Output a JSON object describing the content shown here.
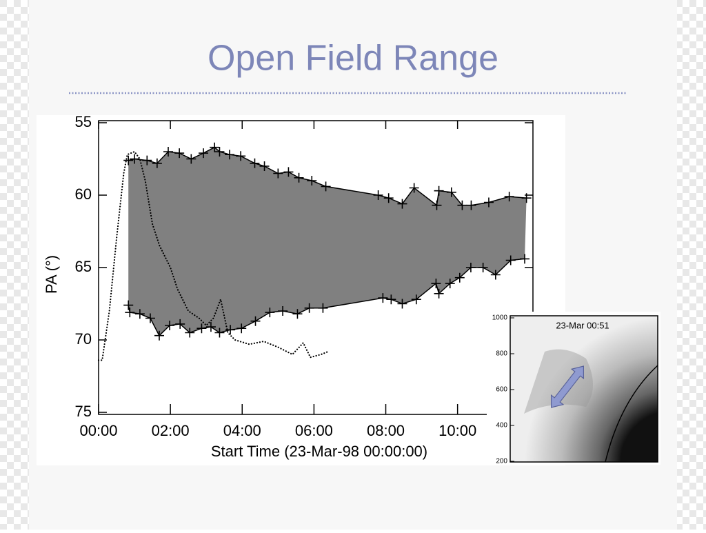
{
  "slide": {
    "title": "Open Field Range"
  },
  "chart_data": {
    "type": "line",
    "xlabel": "Start Time (23-Mar-98 00:00:00)",
    "ylabel": "PA (°)",
    "xlim": [
      0,
      12.1
    ],
    "xticks": [
      {
        "value": 0,
        "label": "00:00"
      },
      {
        "value": 2,
        "label": "02:00"
      },
      {
        "value": 4,
        "label": "04:00"
      },
      {
        "value": 6,
        "label": "06:00"
      },
      {
        "value": 8,
        "label": "08:00"
      },
      {
        "value": 10,
        "label": "10:00"
      }
    ],
    "ylim": [
      55,
      75
    ],
    "yticks": [
      55,
      60,
      65,
      70,
      75
    ],
    "y_inverted": true,
    "fill_between": [
      0,
      1
    ],
    "fill_color": "#808080",
    "series": [
      {
        "color": "#000000",
        "marker": "plus",
        "style": "solid",
        "x": [
          0.83,
          1.0,
          1.35,
          1.63,
          1.94,
          2.25,
          2.58,
          2.92,
          3.23,
          3.37,
          3.65,
          3.96,
          4.35,
          4.62,
          5.0,
          5.29,
          5.58,
          5.94,
          6.33,
          7.79,
          8.08,
          8.46,
          8.79,
          9.42,
          9.48,
          9.83,
          10.13,
          10.38,
          10.87,
          11.44,
          11.92
        ],
        "values": [
          57.6,
          57.5,
          57.6,
          57.8,
          57.0,
          57.1,
          57.5,
          57.1,
          56.7,
          57.0,
          57.2,
          57.3,
          57.8,
          58.0,
          58.5,
          58.4,
          58.8,
          59.0,
          59.4,
          60.0,
          60.2,
          60.6,
          59.5,
          60.7,
          59.7,
          59.8,
          60.7,
          60.7,
          60.5,
          60.1,
          60.2
        ]
      },
      {
        "color": "#000000",
        "marker": "plus",
        "style": "solid",
        "x": [
          0.83,
          0.87,
          1.15,
          1.44,
          1.69,
          1.98,
          2.27,
          2.54,
          2.87,
          3.13,
          3.37,
          3.67,
          3.98,
          4.37,
          4.77,
          5.13,
          5.54,
          5.87,
          6.25,
          7.92,
          8.15,
          8.46,
          8.85,
          9.4,
          9.48,
          9.79,
          10.06,
          10.37,
          10.71,
          11.06,
          11.48,
          11.87
        ],
        "values": [
          67.6,
          68.1,
          68.2,
          68.5,
          69.7,
          69.0,
          68.9,
          69.5,
          69.2,
          69.1,
          69.5,
          69.3,
          69.2,
          68.7,
          68.1,
          68.0,
          68.2,
          67.8,
          67.8,
          67.1,
          67.2,
          67.5,
          67.2,
          66.1,
          66.8,
          66.1,
          65.7,
          65.0,
          65.0,
          65.5,
          64.5,
          64.4
        ]
      },
      {
        "color": "#000000",
        "marker": "none",
        "style": "dotted",
        "x": [
          0,
          0.1,
          0.3,
          0.5,
          0.7,
          0.8,
          1.0,
          1.15,
          1.3,
          1.5,
          1.7,
          1.9,
          2.0,
          2.2,
          2.5,
          2.8,
          3.0,
          3.2,
          3.4,
          3.6,
          3.8,
          4.2,
          4.6,
          5.0,
          5.4,
          5.7,
          5.9,
          6.2,
          6.4
        ],
        "values": [
          71.4,
          71.4,
          68,
          63,
          58.5,
          57.2,
          57.0,
          57.5,
          59,
          62,
          63.5,
          64.5,
          65,
          66.5,
          68,
          68.5,
          69,
          68.5,
          67.2,
          69.5,
          70,
          70.3,
          70.1,
          70.5,
          71.0,
          70.2,
          71.2,
          71.0,
          70.8
        ]
      }
    ]
  },
  "inset": {
    "label": "23-Mar 00:51",
    "yticks": [
      1000,
      800,
      600,
      400,
      200
    ]
  }
}
